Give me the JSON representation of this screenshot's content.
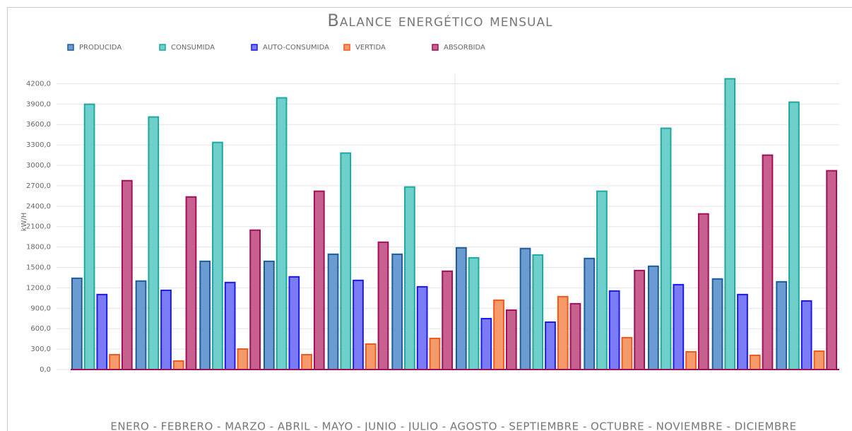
{
  "chart_data": {
    "type": "bar",
    "title": "Balance energético mensual",
    "y_label": "kW/H",
    "x_label": "ENERO - FEBRERO - MARZO - ABRIL - MAYO - JUNIO - JULIO - AGOSTO - SEPTIEMBRE - OCTUBRE - NOVIEMBRE - DICIEMBRE",
    "categories": [
      null,
      null,
      null,
      null,
      null,
      null,
      null,
      null,
      null,
      null,
      null,
      null
    ],
    "series": [
      {
        "name": "PRODUCIDA",
        "color": "#6a9bd1",
        "border_color": "#1f5c99",
        "values": [
          1341,
          1300,
          1590,
          1590,
          1694,
          1694,
          1788,
          1778,
          1632,
          1518,
          1331,
          1289
        ]
      },
      {
        "name": "CONSUMIDA",
        "color": "#6fcfca",
        "border_color": "#1ea8a0",
        "values": [
          3898,
          3711,
          3337,
          3992,
          3181,
          2682,
          1642,
          1684,
          2620,
          3545,
          4272,
          3929
        ]
      },
      {
        "name": "AUTO-CONSUMIDA",
        "color": "#7b7bf5",
        "border_color": "#1a1ae6",
        "values": [
          1102,
          1164,
          1279,
          1362,
          1310,
          1216,
          748,
          696,
          1154,
          1247,
          1102,
          1008
        ]
      },
      {
        "name": "VERTIDA",
        "color": "#f59a6a",
        "border_color": "#f05a1a",
        "values": [
          218,
          125,
          301,
          218,
          374,
          457,
          1019,
          1071,
          468,
          260,
          208,
          270
        ]
      },
      {
        "name": "ABSORBIDA",
        "color": "#c8608f",
        "border_color": "#a0105a",
        "values": [
          2775,
          2536,
          2048,
          2620,
          1871,
          1445,
          873,
          967,
          1455,
          2287,
          3150,
          2921
        ]
      }
    ],
    "ylim": [
      0,
      4350
    ],
    "yticks": [
      {
        "value": 0,
        "label": "0,0"
      },
      {
        "value": 300,
        "label": "300,0"
      },
      {
        "value": 600,
        "label": "600,0"
      },
      {
        "value": 900,
        "label": "900,0"
      },
      {
        "value": 1200,
        "label": "1200,0"
      },
      {
        "value": 1500,
        "label": "1500,0"
      },
      {
        "value": 1800,
        "label": "1800,0"
      },
      {
        "value": 2100,
        "label": "2100,0"
      },
      {
        "value": 2400,
        "label": "2400,0"
      },
      {
        "value": 2700,
        "label": "2700,0"
      },
      {
        "value": 3000,
        "label": "3000,0"
      },
      {
        "value": 3300,
        "label": "3300,0"
      },
      {
        "value": 3600,
        "label": "3600,0"
      },
      {
        "value": 3900,
        "label": "3900,0"
      },
      {
        "value": 4200,
        "label": "4200,0"
      }
    ],
    "grid": true,
    "legend": "top-left"
  }
}
